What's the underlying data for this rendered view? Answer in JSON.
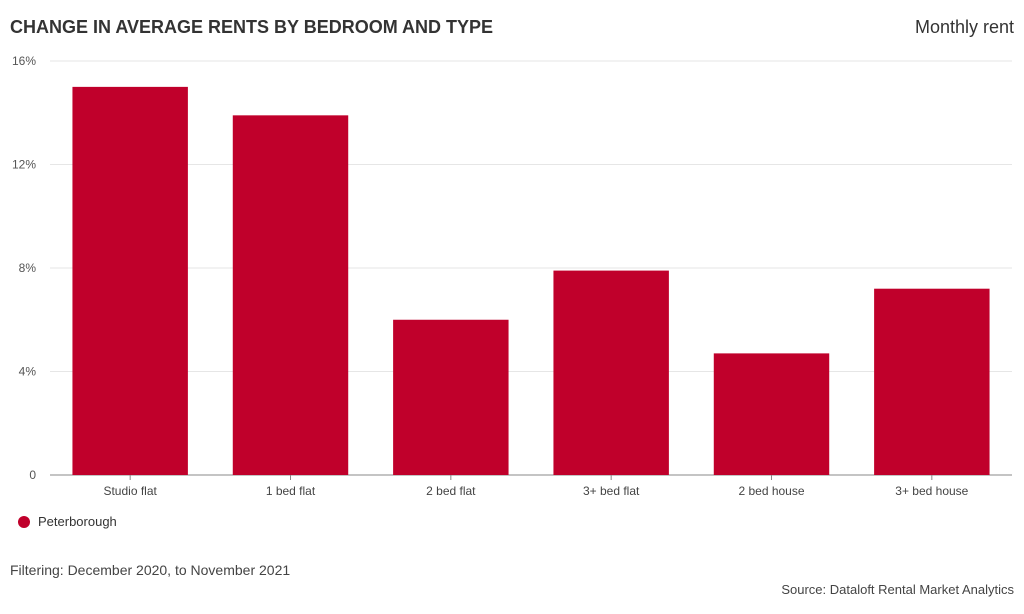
{
  "header": {
    "title": "CHANGE IN AVERAGE RENTS BY BEDROOM AND TYPE",
    "subtitle": "Monthly rent"
  },
  "footer": {
    "filter_note": "Filtering: December 2020, to November 2021",
    "source": "Source: Dataloft Rental Market Analytics"
  },
  "colors": {
    "bar": "#c0002b",
    "grid": "#e6e6e6",
    "axis": "#888888",
    "text": "#333333"
  },
  "chart_data": {
    "type": "bar",
    "title": "CHANGE IN AVERAGE RENTS BY BEDROOM AND TYPE",
    "xlabel": "",
    "ylabel": "",
    "categories": [
      "Studio flat",
      "1 bed flat",
      "2 bed flat",
      "3+ bed flat",
      "2 bed house",
      "3+ bed house"
    ],
    "series": [
      {
        "name": "Peterborough",
        "values": [
          15.0,
          13.9,
          6.0,
          7.9,
          4.7,
          7.2
        ]
      }
    ],
    "ylim": [
      0,
      16
    ],
    "yticks": [
      0,
      4,
      8,
      12,
      16
    ],
    "ytick_labels": [
      "0",
      "4%",
      "8%",
      "12%",
      "16%"
    ],
    "grid": true,
    "legend": "bottom-left"
  }
}
